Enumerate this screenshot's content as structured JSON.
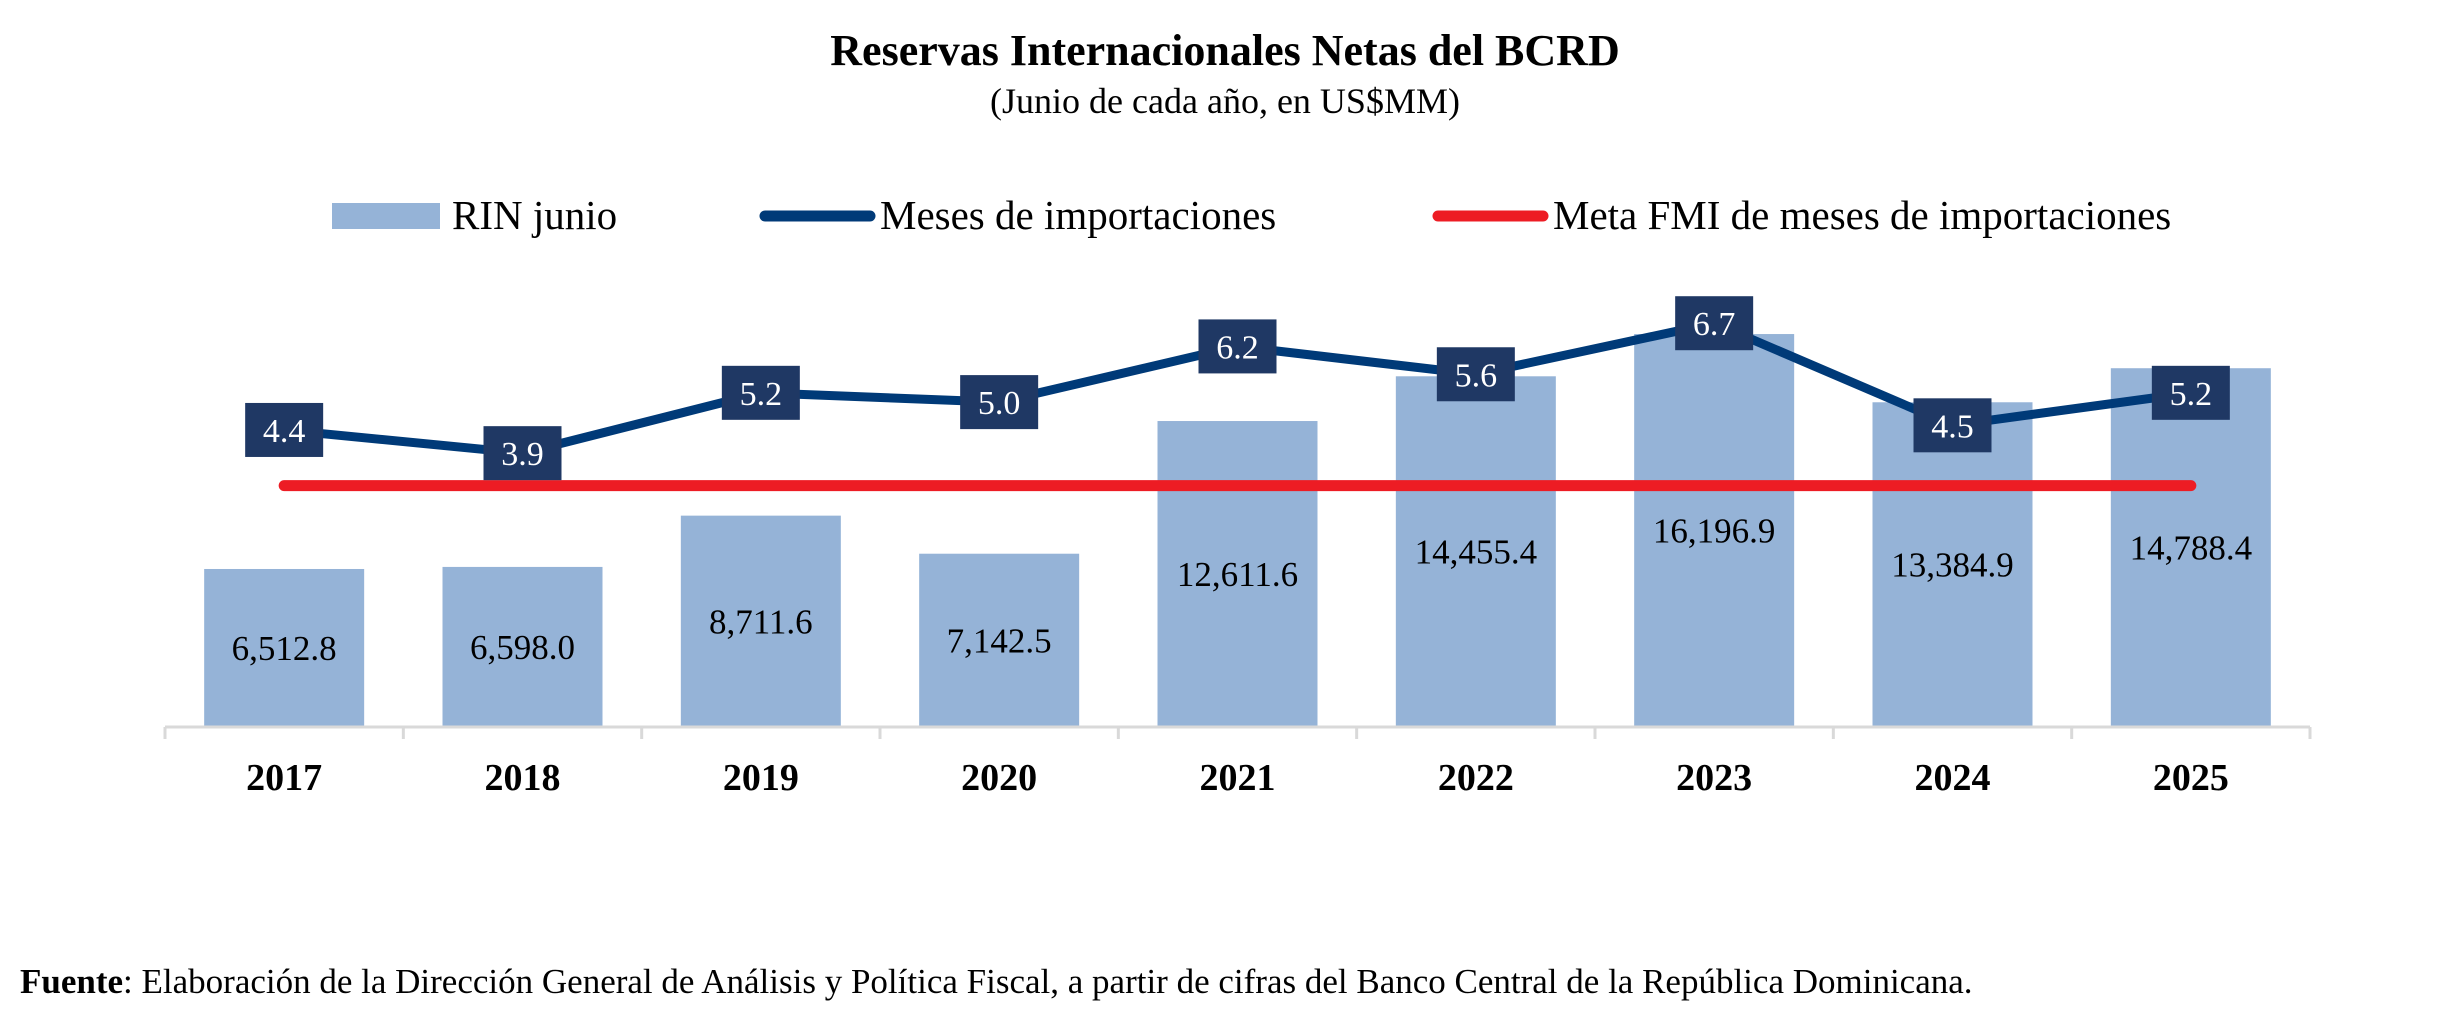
{
  "chart_data": {
    "type": "bar",
    "title": "Reservas Internacionales Netas del BCRD",
    "subtitle": "(Junio de cada año, en US$MM)",
    "categories": [
      "2017",
      "2018",
      "2019",
      "2020",
      "2021",
      "2022",
      "2023",
      "2024",
      "2025"
    ],
    "series": [
      {
        "name": "RIN junio",
        "type": "bar",
        "axis": "left",
        "color": "#95B3D7",
        "values": [
          6512.8,
          6598.0,
          8711.6,
          7142.5,
          12611.6,
          14455.4,
          16196.9,
          13384.9,
          14788.4
        ],
        "labels": [
          "6,512.8",
          "6,598.0",
          "8,711.6",
          "7,142.5",
          "12,611.6",
          "14,455.4",
          "16,196.9",
          "13,384.9",
          "14,788.4"
        ]
      },
      {
        "name": "Meses de importaciones",
        "type": "line",
        "axis": "right",
        "color": "#003A78",
        "label_box_color": "#1F3864",
        "values": [
          4.4,
          3.9,
          5.2,
          5.0,
          6.2,
          5.6,
          6.7,
          4.5,
          5.2
        ],
        "labels": [
          "4.4",
          "3.9",
          "5.2",
          "5.0",
          "6.2",
          "5.6",
          "6.7",
          "4.5",
          "5.2"
        ]
      },
      {
        "name": "Meta FMI de meses de importaciones",
        "type": "line",
        "axis": "right",
        "color": "#ED1C24",
        "values": [
          3.2,
          3.2,
          3.2,
          3.2,
          3.2,
          3.2,
          3.2,
          3.2,
          3.2
        ]
      }
    ],
    "left_axis": {
      "range": [
        0,
        17600
      ],
      "visible": false
    },
    "right_axis": {
      "range": [
        -2.0,
        7.2
      ],
      "visible": false
    },
    "grid": false,
    "legend": "top-center"
  },
  "source": {
    "label": "Fuente",
    "text": ": Elaboración de la Dirección General de Análisis y Política Fiscal, a partir de cifras del Banco Central de la República Dominicana."
  }
}
